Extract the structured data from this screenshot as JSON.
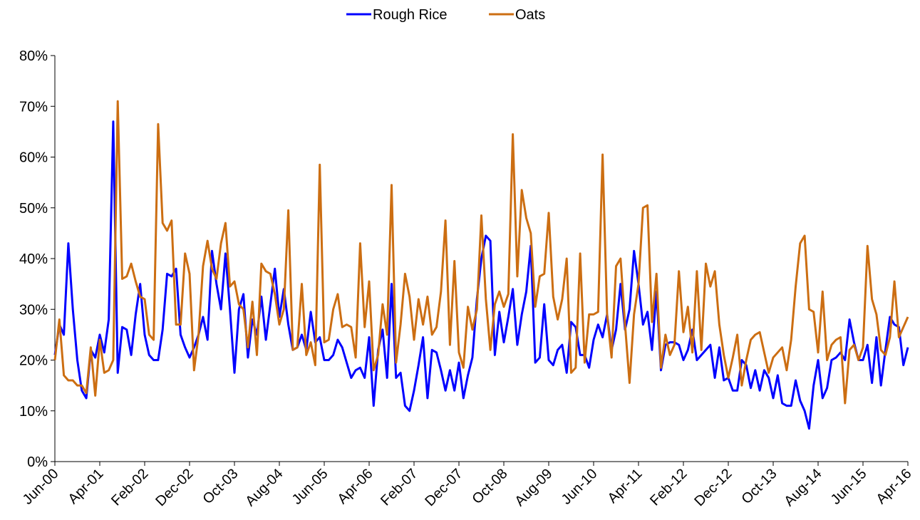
{
  "chart_data": {
    "type": "line",
    "categories": [
      "Jun-00",
      null,
      null,
      null,
      null,
      null,
      null,
      null,
      null,
      null,
      "Apr-01",
      null,
      null,
      null,
      null,
      null,
      null,
      null,
      null,
      null,
      "Feb-02",
      null,
      null,
      null,
      null,
      null,
      null,
      null,
      null,
      null,
      "Dec-02",
      null,
      null,
      null,
      null,
      null,
      null,
      null,
      null,
      null,
      "Oct-03",
      null,
      null,
      null,
      null,
      null,
      null,
      null,
      null,
      null,
      "Aug-04",
      null,
      null,
      null,
      null,
      null,
      null,
      null,
      null,
      null,
      "Jun-05",
      null,
      null,
      null,
      null,
      null,
      null,
      null,
      null,
      null,
      "Apr-06",
      null,
      null,
      null,
      null,
      null,
      null,
      null,
      null,
      null,
      "Feb-07",
      null,
      null,
      null,
      null,
      null,
      null,
      null,
      null,
      null,
      "Dec-07",
      null,
      null,
      null,
      null,
      null,
      null,
      null,
      null,
      null,
      "Oct-08",
      null,
      null,
      null,
      null,
      null,
      null,
      null,
      null,
      null,
      "Aug-09",
      null,
      null,
      null,
      null,
      null,
      null,
      null,
      null,
      null,
      "Jun-10",
      null,
      null,
      null,
      null,
      null,
      null,
      null,
      null,
      null,
      "Apr-11",
      null,
      null,
      null,
      null,
      null,
      null,
      null,
      null,
      null,
      "Feb-12",
      null,
      null,
      null,
      null,
      null,
      null,
      null,
      null,
      null,
      "Dec-12",
      null,
      null,
      null,
      null,
      null,
      null,
      null,
      null,
      null,
      "Oct-13",
      null,
      null,
      null,
      null,
      null,
      null,
      null,
      null,
      null,
      "Aug-14",
      null,
      null,
      null,
      null,
      null,
      null,
      null,
      null,
      null,
      "Jun-15",
      null,
      null,
      null,
      null,
      null,
      null,
      null,
      null,
      null,
      "Apr-16"
    ],
    "series": [
      {
        "name": "Rough Rice",
        "color": "#0000ff",
        "values": [
          21,
          27,
          25,
          43,
          30,
          20,
          14,
          12.5,
          22,
          20.5,
          25,
          21.5,
          28,
          67,
          17.5,
          26.5,
          26,
          21,
          29,
          35,
          25,
          21,
          20,
          20,
          26,
          37,
          36.5,
          38,
          25,
          22.5,
          20.5,
          22.5,
          25,
          28.5,
          24,
          41.5,
          35,
          30,
          41,
          30,
          17.5,
          30,
          33,
          20.5,
          28,
          25,
          32.5,
          24,
          31,
          38,
          28.5,
          34,
          27,
          22,
          22.5,
          25,
          22,
          29.5,
          23.5,
          24.5,
          20,
          20,
          21,
          24,
          22.5,
          19.5,
          16.5,
          18,
          18.5,
          16.5,
          24.5,
          11,
          22,
          26,
          16.5,
          35,
          16.5,
          17.5,
          11,
          10,
          14,
          19,
          24.5,
          12.5,
          22,
          21.5,
          18,
          14,
          18,
          14,
          19.5,
          12.5,
          17,
          20.5,
          32,
          40,
          44.5,
          43.5,
          21,
          29.5,
          23.5,
          28.5,
          34,
          23,
          29,
          33.5,
          42.5,
          19.5,
          20.5,
          31,
          20,
          19,
          22,
          23,
          17.5,
          27.5,
          26.5,
          21,
          21,
          18.5,
          24,
          27,
          24.5,
          29,
          22,
          26,
          35,
          26,
          30,
          41.5,
          35,
          27,
          29.5,
          22,
          33.5,
          18,
          23,
          23.5,
          23.5,
          23,
          20,
          22,
          26,
          20,
          21,
          22,
          23,
          16.5,
          22.5,
          16,
          16.5,
          14,
          14,
          20,
          19,
          14.5,
          18,
          14,
          18,
          16.5,
          12.5,
          17,
          11.5,
          11,
          11,
          16,
          12,
          10,
          6.5,
          15,
          20,
          12.5,
          14.5,
          20,
          20.5,
          21.5,
          20,
          28,
          23.5,
          20,
          20,
          23,
          15.5,
          24.5,
          15,
          22,
          28.5,
          27,
          26.5,
          19,
          22.5
        ]
      },
      {
        "name": "Oats",
        "color": "#cc6e12",
        "values": [
          20,
          28,
          17,
          16,
          16,
          15,
          15,
          13.5,
          22.5,
          13,
          24,
          17.5,
          18,
          20,
          71,
          36,
          36.5,
          39,
          35.5,
          32.5,
          32,
          25,
          24,
          66.5,
          47,
          45.5,
          47.5,
          27,
          27,
          41,
          37,
          18,
          25,
          38.5,
          43.5,
          38,
          36,
          43,
          47,
          34.5,
          35.5,
          31,
          30,
          22.5,
          31.5,
          21,
          39,
          37.5,
          37,
          33,
          27,
          30,
          49.5,
          22,
          22.5,
          35,
          21,
          23.5,
          19,
          58.5,
          23.5,
          24,
          30,
          33,
          26.5,
          27,
          26.5,
          20.5,
          43,
          26.5,
          35.5,
          18,
          21,
          31,
          25,
          54.5,
          19.5,
          27,
          37,
          32.5,
          24,
          32,
          27,
          32.5,
          25,
          26.5,
          33.5,
          47.5,
          23,
          39.5,
          21.5,
          18.5,
          30.5,
          26,
          30,
          48.5,
          32,
          22,
          31,
          33.5,
          30.5,
          33,
          64.5,
          36.5,
          53.5,
          48,
          45,
          30.5,
          36.5,
          37,
          49,
          32.5,
          28,
          32,
          40,
          17.5,
          18.5,
          41,
          19.5,
          29,
          29,
          29.5,
          60.5,
          29,
          20.5,
          38.5,
          40,
          27,
          15.5,
          29,
          35,
          50,
          50.5,
          27.5,
          37,
          18.5,
          25,
          21,
          23,
          37.5,
          25.5,
          30.5,
          21.5,
          37.5,
          22,
          39,
          34.5,
          37.5,
          27,
          21,
          16.5,
          20.5,
          25,
          15,
          20,
          24,
          25,
          25.5,
          21.5,
          17.5,
          20.5,
          21.5,
          22.5,
          18,
          24,
          34.5,
          43,
          44.5,
          30,
          29.5,
          21.5,
          33.5,
          20,
          23,
          24,
          24.5,
          11.5,
          22,
          23,
          20,
          22.5,
          42.5,
          32,
          29,
          22,
          21,
          24.5,
          35.5,
          24.5,
          26.5,
          28.5
        ]
      }
    ],
    "ylim": [
      0,
      80
    ],
    "yticks": [
      {
        "value": 0,
        "label": "0%"
      },
      {
        "value": 10,
        "label": "10%"
      },
      {
        "value": 20,
        "label": "20%"
      },
      {
        "value": 30,
        "label": "30%"
      },
      {
        "value": 40,
        "label": "40%"
      },
      {
        "value": 50,
        "label": "50%"
      },
      {
        "value": 60,
        "label": "60%"
      },
      {
        "value": 70,
        "label": "70%"
      },
      {
        "value": 80,
        "label": "80%"
      }
    ],
    "grid": false,
    "legend": "top"
  }
}
